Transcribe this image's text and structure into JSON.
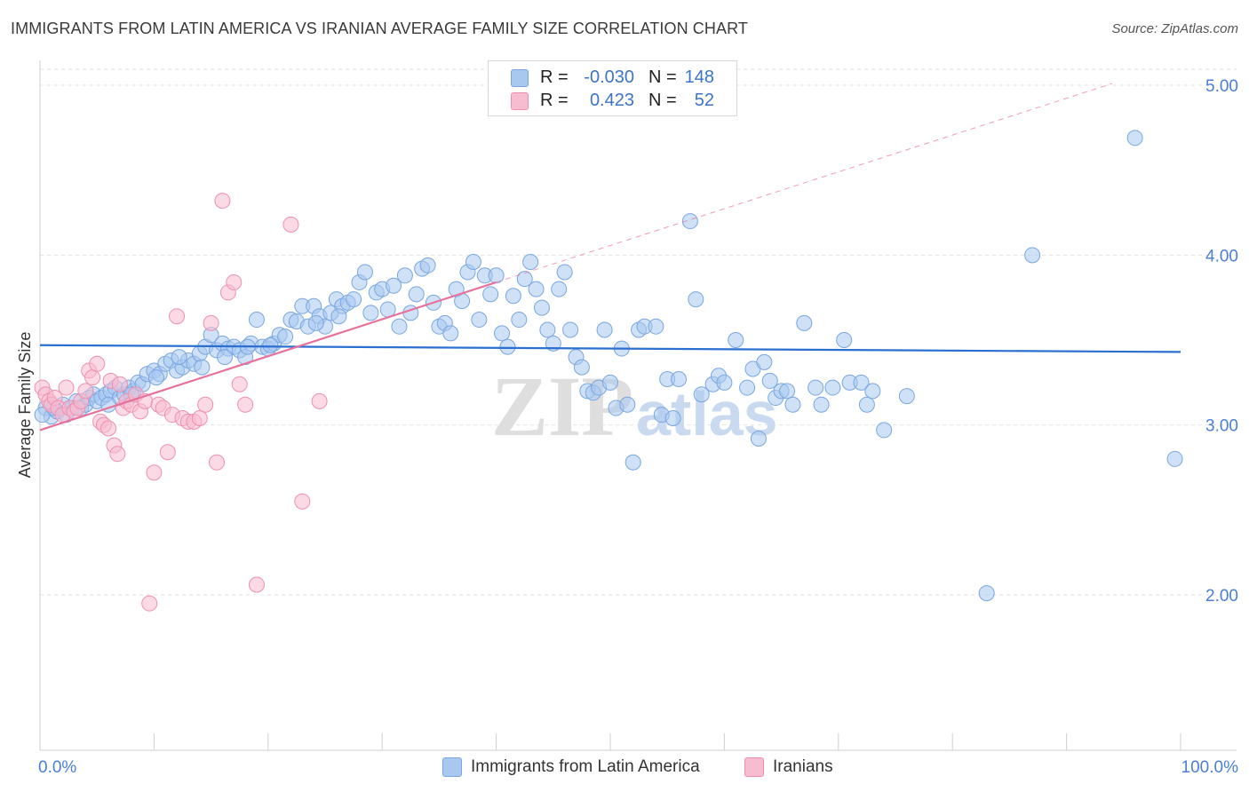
{
  "title": "IMMIGRANTS FROM LATIN AMERICA VS IRANIAN AVERAGE FAMILY SIZE CORRELATION CHART",
  "source": "Source: ZipAtlas.com",
  "watermark": {
    "zip": "ZIP",
    "atlas": "atlas"
  },
  "colors": {
    "blue_fill": "#a8c8f0",
    "blue_stroke": "#7aa6e0",
    "blue_line": "#2b6fd0",
    "pink_fill": "#f8bcd0",
    "pink_stroke": "#ef8fb0",
    "pink_line": "#e8719c",
    "tick_text": "#4a7fd4",
    "grid": "#e3e3e3"
  },
  "legend": {
    "rows": [
      {
        "r_label": "R =",
        "r_value": "-0.030",
        "n_label": "N =",
        "n_value": "148"
      },
      {
        "r_label": "R =",
        "r_value": "0.423",
        "n_label": "N =",
        "n_value": "52"
      }
    ]
  },
  "bottom_legend": {
    "series1": "Immigrants from Latin America",
    "series2": "Iranians"
  },
  "chart_data": {
    "type": "scatter",
    "title": "IMMIGRANTS FROM LATIN AMERICA VS IRANIAN AVERAGE FAMILY SIZE CORRELATION CHART",
    "xlabel": "",
    "ylabel": "Average Family Size",
    "xlim": [
      0,
      100
    ],
    "ylim": [
      1.0,
      5.1
    ],
    "x_tick_labels": [
      "0.0%",
      "100.0%"
    ],
    "y_ticks": [
      2.0,
      3.0,
      4.0,
      5.0
    ],
    "y_tick_labels": [
      "2.00",
      "3.00",
      "4.00",
      "5.00"
    ],
    "grid": true,
    "legend_position": "top-center",
    "series": [
      {
        "name": "Immigrants from Latin America",
        "R": -0.03,
        "N": 148,
        "trend": {
          "x": [
            0,
            100
          ],
          "y": [
            3.47,
            3.43
          ]
        },
        "points": [
          [
            0.5,
            3.1
          ],
          [
            1.0,
            3.05
          ],
          [
            1.5,
            3.08
          ],
          [
            2.0,
            3.12
          ],
          [
            2.3,
            3.06
          ],
          [
            2.8,
            3.1
          ],
          [
            3.2,
            3.14
          ],
          [
            3.6,
            3.1
          ],
          [
            4.0,
            3.12
          ],
          [
            4.3,
            3.16
          ],
          [
            4.7,
            3.18
          ],
          [
            5.0,
            3.14
          ],
          [
            5.4,
            3.16
          ],
          [
            5.8,
            3.18
          ],
          [
            6.2,
            3.2
          ],
          [
            6.6,
            3.22
          ],
          [
            7.0,
            3.16
          ],
          [
            7.4,
            3.18
          ],
          [
            7.8,
            3.22
          ],
          [
            8.2,
            3.2
          ],
          [
            8.6,
            3.25
          ],
          [
            9.0,
            3.24
          ],
          [
            9.4,
            3.3
          ],
          [
            10.0,
            3.32
          ],
          [
            10.5,
            3.3
          ],
          [
            11.0,
            3.36
          ],
          [
            11.5,
            3.38
          ],
          [
            12.0,
            3.32
          ],
          [
            12.5,
            3.34
          ],
          [
            13.0,
            3.38
          ],
          [
            13.5,
            3.36
          ],
          [
            14.0,
            3.42
          ],
          [
            14.5,
            3.46
          ],
          [
            15.0,
            3.53
          ],
          [
            15.5,
            3.44
          ],
          [
            16.0,
            3.48
          ],
          [
            16.5,
            3.45
          ],
          [
            17.0,
            3.46
          ],
          [
            17.5,
            3.44
          ],
          [
            18.0,
            3.4
          ],
          [
            18.5,
            3.48
          ],
          [
            19.0,
            3.62
          ],
          [
            19.5,
            3.46
          ],
          [
            20.0,
            3.45
          ],
          [
            20.5,
            3.48
          ],
          [
            21.0,
            3.53
          ],
          [
            21.5,
            3.52
          ],
          [
            22.0,
            3.62
          ],
          [
            22.5,
            3.61
          ],
          [
            23.0,
            3.7
          ],
          [
            23.5,
            3.58
          ],
          [
            24.0,
            3.7
          ],
          [
            24.5,
            3.64
          ],
          [
            25.0,
            3.58
          ],
          [
            25.5,
            3.66
          ],
          [
            26.0,
            3.74
          ],
          [
            26.5,
            3.7
          ],
          [
            27.0,
            3.72
          ],
          [
            27.5,
            3.74
          ],
          [
            28.0,
            3.84
          ],
          [
            28.5,
            3.9
          ],
          [
            29.0,
            3.66
          ],
          [
            29.5,
            3.78
          ],
          [
            30.0,
            3.8
          ],
          [
            30.5,
            3.68
          ],
          [
            31.0,
            3.82
          ],
          [
            31.5,
            3.58
          ],
          [
            32.0,
            3.88
          ],
          [
            32.5,
            3.66
          ],
          [
            33.0,
            3.77
          ],
          [
            33.5,
            3.92
          ],
          [
            34.0,
            3.94
          ],
          [
            34.5,
            3.72
          ],
          [
            35.0,
            3.58
          ],
          [
            35.5,
            3.6
          ],
          [
            36.0,
            3.54
          ],
          [
            36.5,
            3.8
          ],
          [
            37.0,
            3.73
          ],
          [
            37.5,
            3.9
          ],
          [
            38.0,
            3.96
          ],
          [
            38.5,
            3.62
          ],
          [
            39.0,
            3.88
          ],
          [
            39.5,
            3.77
          ],
          [
            40.0,
            3.88
          ],
          [
            40.5,
            3.54
          ],
          [
            41.0,
            3.46
          ],
          [
            41.5,
            3.76
          ],
          [
            42.0,
            3.62
          ],
          [
            42.5,
            3.86
          ],
          [
            43.0,
            3.96
          ],
          [
            43.5,
            3.8
          ],
          [
            44.0,
            3.69
          ],
          [
            44.5,
            3.56
          ],
          [
            45.0,
            3.48
          ],
          [
            45.5,
            3.8
          ],
          [
            46.0,
            3.9
          ],
          [
            46.5,
            3.56
          ],
          [
            47.0,
            3.4
          ],
          [
            47.5,
            3.34
          ],
          [
            48.0,
            3.2
          ],
          [
            48.5,
            3.19
          ],
          [
            49.0,
            3.22
          ],
          [
            49.5,
            3.56
          ],
          [
            50.0,
            3.25
          ],
          [
            50.5,
            3.1
          ],
          [
            51.0,
            3.45
          ],
          [
            51.5,
            3.12
          ],
          [
            52.0,
            2.78
          ],
          [
            52.5,
            3.56
          ],
          [
            53.0,
            3.58
          ],
          [
            54.0,
            3.58
          ],
          [
            54.5,
            3.06
          ],
          [
            55.0,
            3.27
          ],
          [
            55.5,
            3.04
          ],
          [
            56.0,
            3.27
          ],
          [
            57.0,
            4.2
          ],
          [
            57.5,
            3.74
          ],
          [
            58.0,
            3.18
          ],
          [
            59.0,
            3.24
          ],
          [
            59.5,
            3.29
          ],
          [
            60.0,
            3.25
          ],
          [
            61.0,
            3.5
          ],
          [
            62.0,
            3.22
          ],
          [
            62.5,
            3.33
          ],
          [
            63.0,
            2.92
          ],
          [
            63.5,
            3.37
          ],
          [
            64.0,
            3.26
          ],
          [
            64.5,
            3.16
          ],
          [
            65.0,
            3.2
          ],
          [
            65.5,
            3.2
          ],
          [
            66.0,
            3.12
          ],
          [
            67.0,
            3.6
          ],
          [
            68.0,
            3.22
          ],
          [
            68.5,
            3.12
          ],
          [
            69.5,
            3.22
          ],
          [
            70.5,
            3.5
          ],
          [
            71.0,
            3.25
          ],
          [
            72.0,
            3.25
          ],
          [
            72.5,
            3.12
          ],
          [
            73.0,
            3.2
          ],
          [
            74.0,
            2.97
          ],
          [
            76.0,
            3.17
          ],
          [
            83.0,
            2.01
          ],
          [
            87.0,
            4.0
          ],
          [
            96.0,
            4.69
          ],
          [
            99.5,
            2.8
          ],
          [
            0.2,
            3.06
          ],
          [
            1.2,
            3.1
          ],
          [
            6.0,
            3.12
          ],
          [
            8.0,
            3.18
          ],
          [
            10.2,
            3.28
          ],
          [
            12.2,
            3.4
          ],
          [
            14.2,
            3.34
          ],
          [
            16.2,
            3.4
          ],
          [
            18.2,
            3.46
          ],
          [
            20.2,
            3.47
          ],
          [
            24.2,
            3.6
          ],
          [
            26.2,
            3.64
          ]
        ]
      },
      {
        "name": "Iranians",
        "R": 0.423,
        "N": 52,
        "trend": {
          "x": [
            0,
            40
          ],
          "y": [
            2.97,
            3.84
          ]
        },
        "trend_extended": {
          "x": [
            40,
            94
          ],
          "y": [
            3.84,
            5.01
          ]
        },
        "points": [
          [
            0.2,
            3.22
          ],
          [
            0.5,
            3.18
          ],
          [
            0.8,
            3.14
          ],
          [
            1.0,
            3.12
          ],
          [
            1.3,
            3.16
          ],
          [
            1.6,
            3.1
          ],
          [
            2.0,
            3.06
          ],
          [
            2.3,
            3.22
          ],
          [
            2.6,
            3.1
          ],
          [
            3.0,
            3.08
          ],
          [
            3.3,
            3.1
          ],
          [
            3.6,
            3.14
          ],
          [
            4.0,
            3.2
          ],
          [
            4.3,
            3.32
          ],
          [
            4.6,
            3.28
          ],
          [
            5.0,
            3.36
          ],
          [
            5.3,
            3.02
          ],
          [
            5.6,
            3.0
          ],
          [
            6.0,
            2.98
          ],
          [
            6.2,
            3.26
          ],
          [
            6.5,
            2.88
          ],
          [
            6.8,
            2.83
          ],
          [
            7.0,
            3.24
          ],
          [
            7.3,
            3.1
          ],
          [
            7.6,
            3.14
          ],
          [
            8.0,
            3.12
          ],
          [
            8.4,
            3.18
          ],
          [
            8.8,
            3.08
          ],
          [
            9.2,
            3.14
          ],
          [
            9.6,
            1.95
          ],
          [
            10.0,
            2.72
          ],
          [
            10.4,
            3.12
          ],
          [
            10.8,
            3.1
          ],
          [
            11.2,
            2.84
          ],
          [
            11.6,
            3.06
          ],
          [
            12.0,
            3.64
          ],
          [
            12.5,
            3.04
          ],
          [
            13.0,
            3.02
          ],
          [
            13.5,
            3.02
          ],
          [
            14.0,
            3.04
          ],
          [
            14.5,
            3.12
          ],
          [
            15.0,
            3.6
          ],
          [
            15.5,
            2.78
          ],
          [
            16.0,
            4.32
          ],
          [
            16.5,
            3.78
          ],
          [
            17.0,
            3.84
          ],
          [
            17.5,
            3.24
          ],
          [
            18.0,
            3.12
          ],
          [
            19.0,
            2.06
          ],
          [
            22.0,
            4.18
          ],
          [
            23.0,
            2.55
          ],
          [
            24.5,
            3.14
          ]
        ]
      }
    ]
  }
}
